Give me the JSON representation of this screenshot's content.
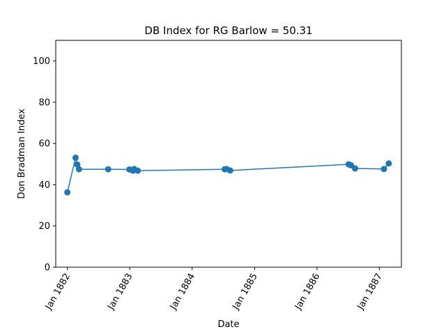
{
  "chart_data": {
    "type": "line",
    "title": "DB Index for RG Barlow = 50.31",
    "xlabel": "Date",
    "ylabel": "Don Bradman Index",
    "x_axis_type": "date",
    "xlim": [
      "1881-10-25",
      "1887-05-10"
    ],
    "ylim": [
      0,
      110
    ],
    "yticks": [
      0,
      20,
      40,
      60,
      80,
      100
    ],
    "xticks": [
      {
        "date": "1882-01-01",
        "label": "Jan 1882"
      },
      {
        "date": "1883-01-01",
        "label": "Jan 1883"
      },
      {
        "date": "1884-01-01",
        "label": "Jan 1884"
      },
      {
        "date": "1885-01-01",
        "label": "Jan 1885"
      },
      {
        "date": "1886-01-01",
        "label": "Jan 1886"
      },
      {
        "date": "1887-01-01",
        "label": "Jan 1887"
      }
    ],
    "grid": false,
    "series": [
      {
        "color": "#1f77b4",
        "marker": "circle",
        "points": [
          {
            "x": "1882-01-01",
            "y": 36.3
          },
          {
            "x": "1882-02-18",
            "y": 53.1
          },
          {
            "x": "1882-02-28",
            "y": 49.8
          },
          {
            "x": "1882-03-10",
            "y": 47.5
          },
          {
            "x": "1882-08-28",
            "y": 47.5
          },
          {
            "x": "1882-12-30",
            "y": 47.4
          },
          {
            "x": "1883-01-20",
            "y": 46.8
          },
          {
            "x": "1883-01-27",
            "y": 47.6
          },
          {
            "x": "1883-02-17",
            "y": 46.8
          },
          {
            "x": "1884-07-10",
            "y": 47.5
          },
          {
            "x": "1884-07-21",
            "y": 47.6
          },
          {
            "x": "1884-08-11",
            "y": 46.9
          },
          {
            "x": "1886-07-05",
            "y": 49.9
          },
          {
            "x": "1886-07-19",
            "y": 49.4
          },
          {
            "x": "1886-08-12",
            "y": 47.9
          },
          {
            "x": "1887-01-28",
            "y": 47.6
          },
          {
            "x": "1887-02-25",
            "y": 50.3
          }
        ]
      }
    ]
  }
}
